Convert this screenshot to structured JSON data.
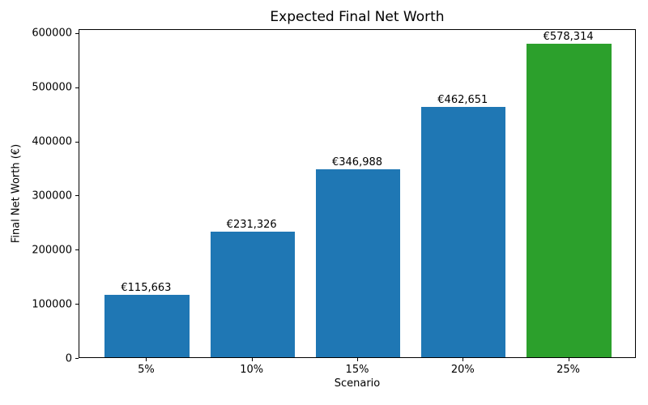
{
  "figure": {
    "background_color": "#ffffff",
    "text_color": "#000000"
  },
  "chart_data": {
    "type": "bar",
    "title": "Expected Final Net Worth",
    "xlabel": "Scenario",
    "ylabel": "Final Net Worth (€)",
    "categories": [
      "5%",
      "10%",
      "15%",
      "20%",
      "25%"
    ],
    "values": [
      115663,
      231326,
      346988,
      462651,
      578314
    ],
    "bar_value_labels": [
      "€115,663",
      "€231,326",
      "€346,988",
      "€462,651",
      "€578,314"
    ],
    "bar_colors": [
      "#1f77b4",
      "#1f77b4",
      "#1f77b4",
      "#1f77b4",
      "#2ca02c"
    ],
    "yticks": [
      0,
      100000,
      200000,
      300000,
      400000,
      500000,
      600000
    ],
    "ytick_labels": [
      "0",
      "100000",
      "200000",
      "300000",
      "400000",
      "500000",
      "600000"
    ],
    "ylim": [
      0,
      607230
    ],
    "bar_width_fraction": 0.8,
    "grid": false,
    "legend": "none"
  }
}
